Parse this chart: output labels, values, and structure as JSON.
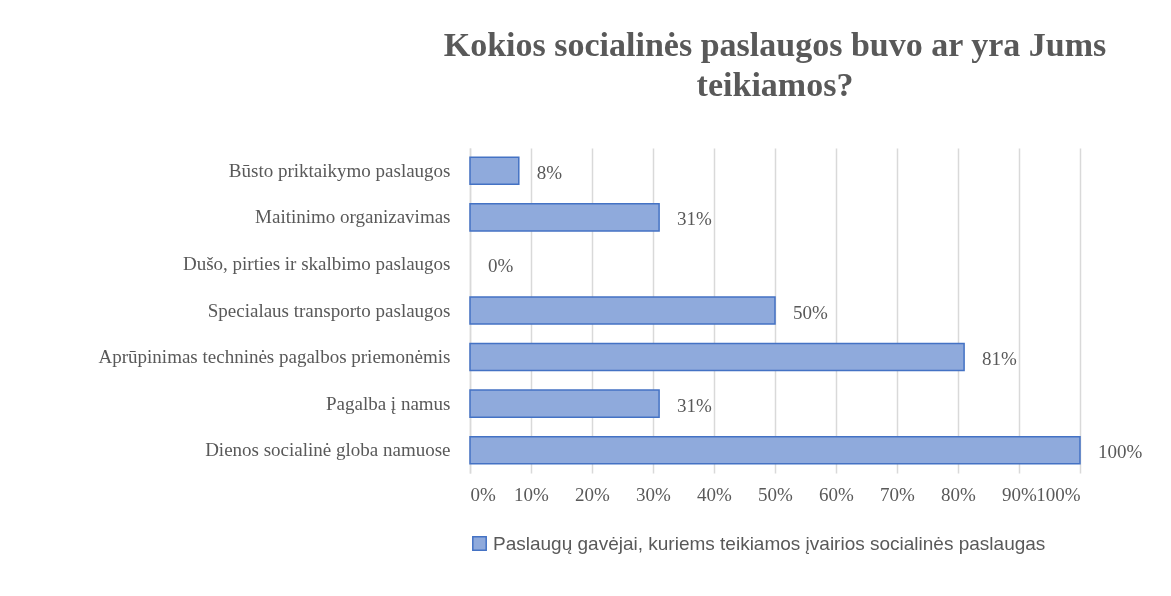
{
  "chart_data": {
    "type": "bar",
    "orientation": "horizontal",
    "title": "Kokios socialinės paslaugos buvo ar yra Jums teikiamos?",
    "categories": [
      "Būsto priktaikymo paslaugos",
      "Maitinimo organizavimas",
      "Dušo, pirties ir skalbimo paslaugos",
      "Specialaus transporto paslaugos",
      "Aprūpinimas techninės pagalbos priemonėmis",
      "Pagalba į namus",
      "Dienos socialinė globa namuose"
    ],
    "series": [
      {
        "name": "Paslaugų gavėjai, kuriems teikiamos įvairios socialinės paslaugas",
        "color": "#8faadc",
        "values": [
          8,
          31,
          0,
          50,
          81,
          31,
          100
        ]
      }
    ],
    "value_labels": [
      "8%",
      "31%",
      "0%",
      "50%",
      "81%",
      "31%",
      "100%"
    ],
    "xlim": [
      0,
      100
    ],
    "xticks": [
      {
        "value": 0,
        "label": "0%"
      },
      {
        "value": 10,
        "label": "10%"
      },
      {
        "value": 20,
        "label": "20%"
      },
      {
        "value": 30,
        "label": "30%"
      },
      {
        "value": 40,
        "label": "40%"
      },
      {
        "value": 50,
        "label": "50%"
      },
      {
        "value": 60,
        "label": "60%"
      },
      {
        "value": 70,
        "label": "70%"
      },
      {
        "value": 80,
        "label": "80%"
      },
      {
        "value": 90,
        "label": "90%"
      },
      {
        "value": 100,
        "label": "100%"
      }
    ],
    "grid": "x",
    "legend": "bottom"
  }
}
